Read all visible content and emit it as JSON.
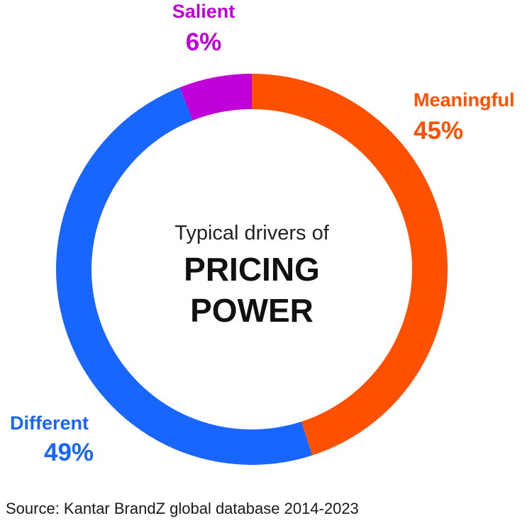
{
  "chart_data": {
    "type": "pie",
    "donut": true,
    "center_text": {
      "line1": "Typical drivers of",
      "line2": "PRICING",
      "line3": "POWER"
    },
    "slices": [
      {
        "label": "Meaningful",
        "value": 45,
        "value_label": "45%",
        "color": "#ff5000"
      },
      {
        "label": "Different",
        "value": 49,
        "value_label": "49%",
        "color": "#1966ff"
      },
      {
        "label": "Salient",
        "value": 6,
        "value_label": "6%",
        "color": "#c000d8"
      }
    ],
    "source": "Source: Kantar BrandZ global database 2014-2023"
  }
}
